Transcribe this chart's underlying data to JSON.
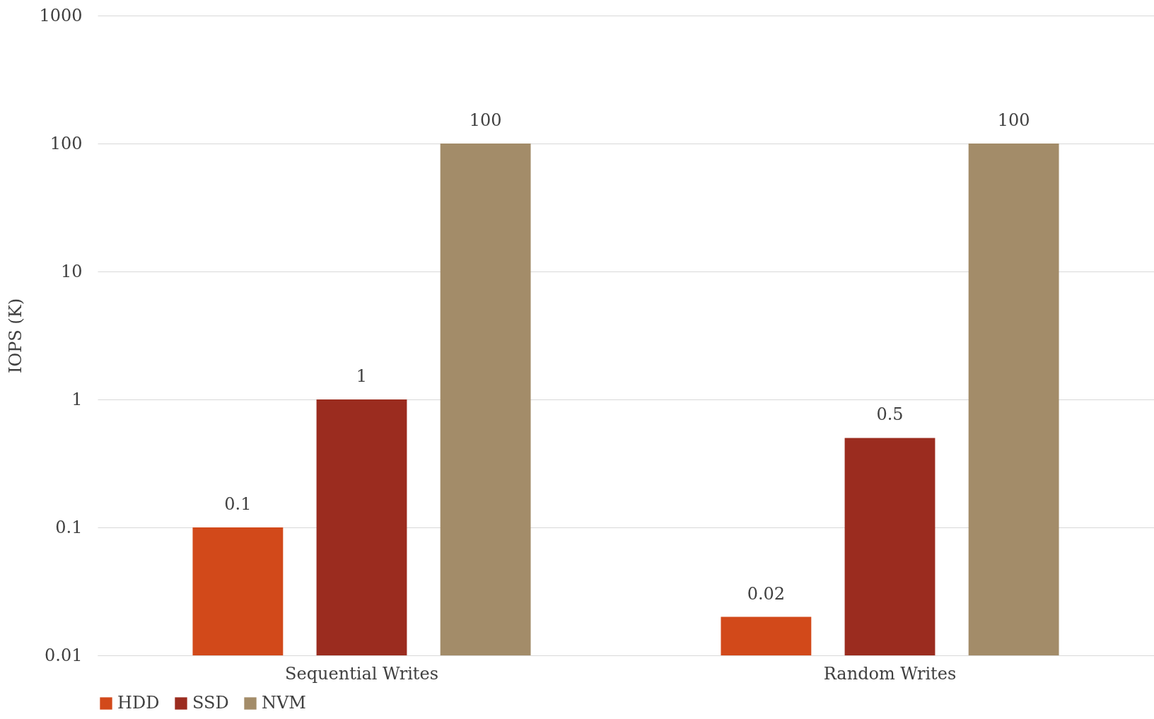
{
  "chart_data": {
    "type": "bar",
    "ylabel": "IOPS (K)",
    "categories": [
      "Sequential Writes",
      "Random Writes"
    ],
    "series": [
      {
        "name": "HDD",
        "color": "#d2491a",
        "values": [
          0.1,
          0.02
        ]
      },
      {
        "name": "SSD",
        "color": "#9b2c1f",
        "values": [
          1,
          0.5
        ]
      },
      {
        "name": "NVM",
        "color": "#a38c69",
        "values": [
          100,
          100
        ]
      }
    ],
    "log": true,
    "ylim": [
      0.01,
      1000
    ],
    "yticks": [
      0.01,
      0.1,
      1,
      10,
      100,
      1000
    ],
    "grid": "y",
    "legend": "bottom",
    "data_labels": true
  }
}
